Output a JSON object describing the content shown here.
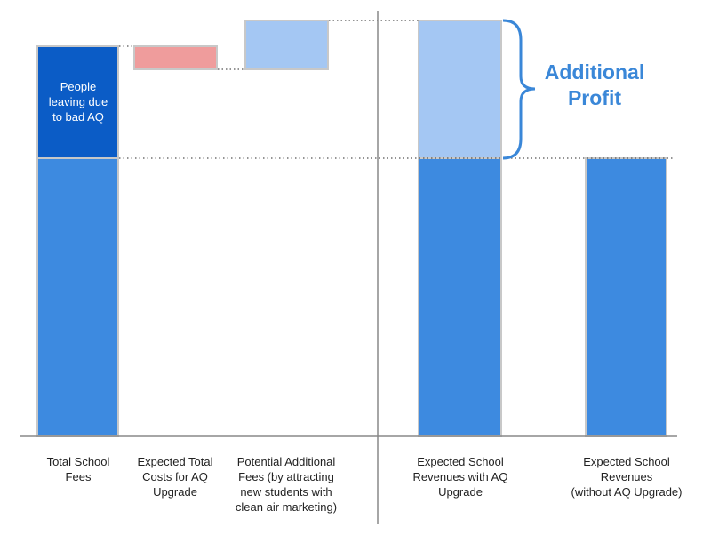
{
  "annotation": [
    "People",
    "leaving due",
    "to bad AQ"
  ],
  "highlight": [
    "Additional",
    "Profit"
  ],
  "labels": [
    [
      "Total School",
      "Fees"
    ],
    [
      "Expected Total",
      "Costs for AQ",
      "Upgrade"
    ],
    [
      "Potential Additional",
      "Fees (by attracting",
      "new students with",
      "clean air marketing)"
    ],
    [
      "Expected School",
      "Revenues with AQ",
      "Upgrade"
    ],
    [
      "Expected School",
      "Revenues",
      "(without AQ Upgrade)"
    ]
  ]
}
